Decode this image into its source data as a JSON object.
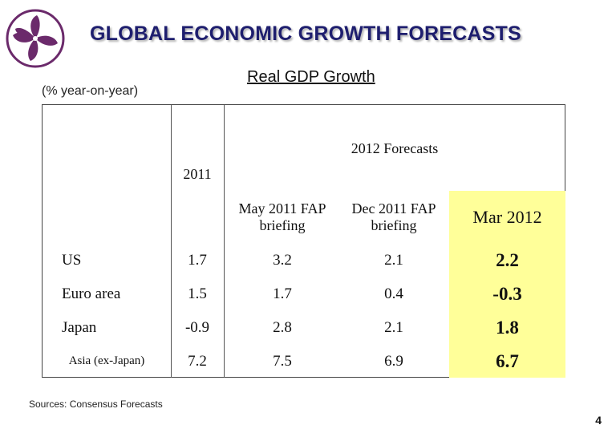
{
  "header": {
    "title": "GLOBAL ECONOMIC GROWTH FORECASTS",
    "subtitle": "Real GDP Growth",
    "unit_note": "(% year-on-year)"
  },
  "colors": {
    "title": "#1e1e6e",
    "highlight": "#ffff99",
    "logo": "#6b2a6b"
  },
  "logo_icon": "bauhinia-flower-icon",
  "table": {
    "year_header": "2011",
    "forecast_group_header": "2012 Forecasts",
    "columns": [
      "May 2011 FAP briefing",
      "Dec 2011 FAP briefing",
      "Mar 2012"
    ],
    "rows": [
      {
        "label": "US",
        "y2011": "1.7",
        "may": "3.2",
        "dec": "2.1",
        "mar": "2.2"
      },
      {
        "label": "Euro area",
        "y2011": "1.5",
        "may": "1.7",
        "dec": "0.4",
        "mar": "-0.3"
      },
      {
        "label": "Japan",
        "y2011": "-0.9",
        "may": "2.8",
        "dec": "2.1",
        "mar": "1.8"
      },
      {
        "label": "Asia (ex-Japan)",
        "y2011": "7.2",
        "may": "7.5",
        "dec": "6.9",
        "mar": "6.7"
      }
    ]
  },
  "footer": {
    "sources": "Sources: Consensus Forecasts",
    "page_number": "4"
  }
}
